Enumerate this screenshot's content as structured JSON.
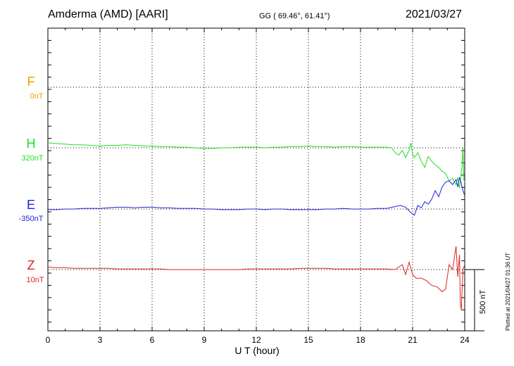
{
  "header": {
    "station": "Amderma (AMD)  [AARI]",
    "coords": "GG ( 69.46°,  61.41°)",
    "date": "2021/03/27"
  },
  "plotted_note": "Plotted at 2021/04/27 01:36 UT",
  "scale_label": "500 nT",
  "chart_data": {
    "type": "line",
    "xlabel": "U T (hour)",
    "xlim": [
      0,
      24
    ],
    "xticks": [
      0,
      3,
      6,
      9,
      12,
      15,
      18,
      21,
      24
    ],
    "xtick_labels": [
      "0",
      "3",
      "6",
      "9",
      "12",
      "15",
      "18",
      "21",
      "24"
    ],
    "scale_nT": 500,
    "grid": true,
    "series": [
      {
        "name": "F",
        "baseline": "0nT",
        "color": "#f0a000",
        "x": [],
        "y": []
      },
      {
        "name": "H",
        "baseline": "320nT",
        "color": "#22dd22",
        "x": [
          0,
          0.5,
          1,
          1.5,
          2,
          2.5,
          3,
          3.5,
          4,
          4.5,
          5,
          5.5,
          6,
          6.5,
          7,
          7.5,
          8,
          8.5,
          9,
          9.5,
          10,
          10.5,
          11,
          11.5,
          12,
          12.5,
          13,
          13.5,
          14,
          14.5,
          15,
          15.5,
          16,
          16.5,
          17,
          17.5,
          18,
          18.5,
          19,
          19.5,
          19.8,
          20,
          20.2,
          20.4,
          20.6,
          20.8,
          20.9,
          21,
          21.1,
          21.3,
          21.5,
          21.7,
          21.9,
          22.1,
          22.3,
          22.5,
          22.7,
          22.9,
          23.1,
          23.3,
          23.5,
          23.6,
          23.7,
          23.8,
          23.85,
          23.9,
          23.95,
          24
        ],
        "y": [
          40,
          35,
          30,
          25,
          25,
          20,
          15,
          20,
          20,
          25,
          20,
          15,
          15,
          10,
          10,
          5,
          5,
          0,
          -5,
          -5,
          0,
          0,
          5,
          5,
          5,
          0,
          5,
          5,
          10,
          10,
          15,
          10,
          10,
          5,
          10,
          10,
          5,
          5,
          5,
          5,
          0,
          -40,
          -60,
          -20,
          -80,
          -20,
          40,
          -50,
          -80,
          -40,
          -110,
          -160,
          -70,
          -110,
          -140,
          -160,
          -190,
          -210,
          -270,
          -250,
          -300,
          -240,
          -330,
          -200,
          -150,
          0,
          -260,
          -280
        ]
      },
      {
        "name": "E",
        "baseline": "-350nT",
        "color": "#2222dd",
        "x": [
          0,
          0.5,
          1,
          1.5,
          2,
          2.5,
          3,
          3.5,
          4,
          4.5,
          5,
          5.5,
          6,
          6.5,
          7,
          7.5,
          8,
          8.5,
          9,
          9.5,
          10,
          10.5,
          11,
          11.5,
          12,
          12.5,
          13,
          13.5,
          14,
          14.5,
          15,
          15.5,
          16,
          16.5,
          17,
          17.5,
          18,
          18.5,
          19,
          19.5,
          20,
          20.3,
          20.6,
          20.9,
          21.1,
          21.3,
          21.5,
          21.7,
          21.9,
          22.1,
          22.3,
          22.5,
          22.7,
          22.9,
          23.1,
          23.3,
          23.5,
          23.6,
          23.7,
          23.8,
          23.9,
          24
        ],
        "y": [
          -5,
          -5,
          0,
          0,
          5,
          5,
          5,
          10,
          15,
          15,
          10,
          15,
          15,
          10,
          10,
          5,
          5,
          5,
          0,
          0,
          -5,
          -5,
          -5,
          0,
          0,
          -5,
          0,
          0,
          -5,
          -5,
          -5,
          -5,
          0,
          0,
          5,
          0,
          0,
          0,
          5,
          5,
          20,
          30,
          15,
          -30,
          -50,
          30,
          10,
          60,
          40,
          80,
          150,
          100,
          180,
          220,
          230,
          200,
          240,
          180,
          260,
          210,
          150,
          110
        ]
      },
      {
        "name": "Z",
        "baseline": "10nT",
        "color": "#dd2222",
        "x": [
          0,
          0.5,
          1,
          1.5,
          2,
          2.5,
          3,
          3.5,
          4,
          4.5,
          5,
          5.5,
          6,
          6.5,
          7,
          7.5,
          8,
          8.5,
          9,
          9.5,
          10,
          10.5,
          11,
          11.5,
          12,
          12.5,
          13,
          13.5,
          14,
          14.5,
          15,
          15.5,
          16,
          16.5,
          17,
          17.5,
          18,
          18.5,
          19,
          19.5,
          20,
          20.2,
          20.4,
          20.6,
          20.8,
          21,
          21.2,
          21.5,
          21.8,
          22.1,
          22.4,
          22.7,
          22.9,
          23.1,
          23.3,
          23.5,
          23.6,
          23.7,
          23.75,
          23.8,
          23.9,
          24
        ],
        "y": [
          20,
          15,
          15,
          10,
          10,
          10,
          10,
          10,
          5,
          5,
          5,
          5,
          5,
          5,
          0,
          0,
          0,
          0,
          0,
          0,
          0,
          0,
          0,
          5,
          5,
          5,
          5,
          5,
          5,
          10,
          10,
          10,
          10,
          5,
          5,
          5,
          5,
          5,
          5,
          5,
          0,
          20,
          40,
          -40,
          60,
          -40,
          -70,
          -70,
          -90,
          -130,
          -140,
          -180,
          -160,
          40,
          0,
          190,
          -60,
          120,
          -280,
          -330,
          0,
          40
        ]
      }
    ]
  }
}
